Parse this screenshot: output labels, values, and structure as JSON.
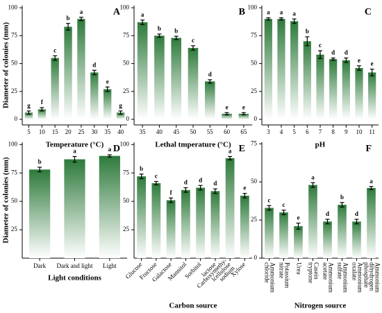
{
  "chart_data": [
    {
      "type": "bar",
      "panel": "A",
      "xlabel": "Temperature (°C)",
      "ylabel": "Diameter of colonies (mm)",
      "categories": [
        "5",
        "10",
        "15",
        "20",
        "25",
        "30",
        "35",
        "40"
      ],
      "values": [
        6,
        9,
        55,
        83,
        90,
        42,
        27,
        6
      ],
      "errors": [
        1.5,
        1.5,
        2,
        3,
        1.5,
        2,
        2,
        1.5
      ],
      "letters": [
        "g",
        "f",
        "c",
        "b",
        "a",
        "d",
        "e",
        "g"
      ],
      "color": "#2e7a3b",
      "ylim": [
        -5,
        102
      ],
      "yticks": [
        0,
        25,
        50,
        75,
        100
      ],
      "xtick_rotation": 0
    },
    {
      "type": "bar",
      "panel": "B",
      "xlabel": "Lethal tmperature (°C)",
      "categories": [
        "35",
        "40",
        "45",
        "50",
        "55",
        "60",
        "65"
      ],
      "values": [
        87,
        75,
        73,
        64,
        34,
        5,
        5
      ],
      "errors": [
        2,
        1.5,
        1.5,
        2,
        1.5,
        1,
        1
      ],
      "letters": [
        "a",
        "b",
        "b",
        "c",
        "d",
        "e",
        "e"
      ],
      "color": "#2e7a3b",
      "ylim": [
        -5,
        102
      ],
      "yticks": [
        0,
        25,
        50,
        75,
        100
      ],
      "xtick_rotation": 0
    },
    {
      "type": "bar",
      "panel": "C",
      "xlabel": "pH",
      "categories": [
        "3",
        "4",
        "5",
        "6",
        "7",
        "8",
        "9",
        "10",
        "11"
      ],
      "values": [
        90,
        90,
        88,
        70,
        58,
        54,
        53,
        46,
        42
      ],
      "errors": [
        1,
        1,
        2,
        4,
        3.5,
        1,
        2,
        2,
        3
      ],
      "letters": [
        "a",
        "a",
        "a",
        "b",
        "c",
        "d",
        "d",
        "e",
        "e"
      ],
      "color": "#2e7a3b",
      "ylim": [
        -5,
        102
      ],
      "yticks": [
        0,
        25,
        50,
        75,
        100
      ],
      "xtick_rotation": 0
    },
    {
      "type": "bar",
      "panel": "D",
      "xlabel": "Light conditions",
      "ylabel": "Diameter of colonies (mm)",
      "categories": [
        [
          "Dark"
        ],
        [
          "Dark and light"
        ],
        [
          "Light"
        ]
      ],
      "values": [
        78,
        87,
        90
      ],
      "errors": [
        2,
        2.5,
        1
      ],
      "letters": [
        "b",
        "a",
        "a"
      ],
      "color": "#2e7a3b",
      "ylim": [
        0,
        102
      ],
      "yticks": [
        25,
        50,
        75,
        100
      ],
      "xtick_rotation": 0
    },
    {
      "type": "bar",
      "panel": "E",
      "xlabel": "Carbon source",
      "categories": [
        [
          "Glucose"
        ],
        [
          "Fructose"
        ],
        [
          "Galactose"
        ],
        [
          "Mannitol"
        ],
        [
          "Sorbitol"
        ],
        [
          "lactose"
        ],
        [
          "Carboxymethy-",
          "lcellulose",
          "sodium"
        ],
        [
          "Xylose"
        ]
      ],
      "values": [
        72,
        66,
        51,
        60,
        62,
        59,
        88,
        55
      ],
      "errors": [
        2,
        1.5,
        2,
        2,
        2,
        2,
        1.5,
        2
      ],
      "letters": [
        "b",
        "c",
        "f",
        "d",
        "d",
        "d",
        "a",
        "e"
      ],
      "color": "#2e7a3b",
      "ylim": [
        0,
        102
      ],
      "yticks": [
        25,
        50,
        75,
        100
      ],
      "xtick_rotation": -45
    },
    {
      "type": "bar",
      "panel": "F",
      "xlabel": "Nitrogen source",
      "categories": [
        [
          "Ammonium",
          "chloride"
        ],
        [
          "Potassium",
          "nitrate"
        ],
        [
          "Urea"
        ],
        [
          "Casein",
          "tryptone"
        ],
        [
          "Ammonium",
          "acetate"
        ],
        [
          "Ammonium",
          "sulfate"
        ],
        [
          "Ammonium",
          "oxalate"
        ],
        [
          "Ammonium",
          "dihydrogen",
          "phosphate"
        ]
      ],
      "values": [
        33,
        30,
        21,
        48,
        24,
        35,
        24,
        46
      ],
      "errors": [
        1.5,
        1.5,
        2,
        1.5,
        1.5,
        1.5,
        1.5,
        1
      ],
      "letters": [
        "c",
        "c",
        "e",
        "a",
        "d",
        "b",
        "d",
        "a"
      ],
      "color": "#2e7a3b",
      "ylim": [
        0,
        76
      ],
      "yticks": [
        0,
        25,
        50,
        75
      ],
      "xtick_rotation": 90
    }
  ]
}
